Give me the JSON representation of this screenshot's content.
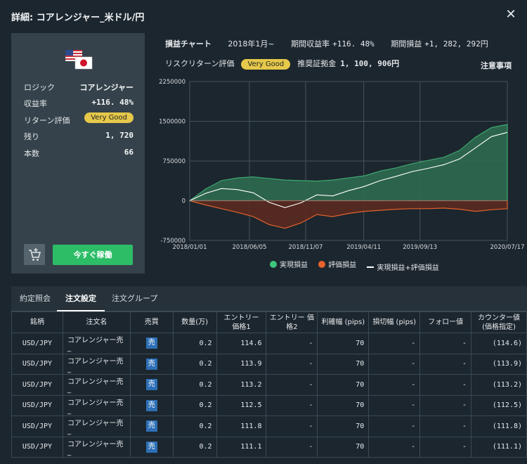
{
  "window": {
    "title": "詳細: コアレンジャー_米ドル/円"
  },
  "strategy": {
    "rows": [
      {
        "key": "ロジック",
        "value": "コアレンジャー"
      },
      {
        "key": "収益率",
        "value": "+116. 48%"
      },
      {
        "key": "リターン評価",
        "value": "Very Good"
      },
      {
        "key": "残り",
        "value": "1, 720"
      },
      {
        "key": "本数",
        "value": "66"
      }
    ],
    "trade_button": "今すぐ稼働"
  },
  "summary": {
    "chart_label": "損益チャート",
    "start": "2018年1月~",
    "return_label": "期間収益率",
    "return_value": "+116. 48%",
    "pl_label": "期間損益",
    "pl_value": "+1, 282, 292円",
    "risk_label": "リスクリターン評価",
    "risk_value": "Very Good",
    "margin_label": "推奨証拠金",
    "margin_value": "1, 100, 906円",
    "notice": "注意事項"
  },
  "chart_data": {
    "type": "area",
    "x_ticks": [
      "2018/01/01",
      "2018/06/05",
      "2018/11/07",
      "2019/04/11",
      "2019/09/13",
      "2020/07/17"
    ],
    "y_ticks": [
      "2250000",
      "1500000",
      "750000",
      "0",
      "-750000"
    ],
    "ylim": [
      -750000,
      2250000
    ],
    "series": [
      {
        "name": "実現損益",
        "color": "#3a9a6a",
        "values": [
          0,
          220000,
          380000,
          430000,
          450000,
          420000,
          390000,
          380000,
          370000,
          390000,
          430000,
          470000,
          560000,
          620000,
          700000,
          760000,
          820000,
          950000,
          1200000,
          1380000,
          1440000
        ]
      },
      {
        "name": "評価損益",
        "color": "#e2622d",
        "values": [
          0,
          -80000,
          -150000,
          -220000,
          -300000,
          -450000,
          -520000,
          -420000,
          -260000,
          -300000,
          -240000,
          -200000,
          -180000,
          -160000,
          -150000,
          -150000,
          -140000,
          -160000,
          -200000,
          -170000,
          -150000
        ]
      },
      {
        "name": "実現損益+評価損益",
        "color": "#ffffff",
        "values": [
          0,
          140000,
          230000,
          210000,
          150000,
          -30000,
          -130000,
          -40000,
          110000,
          90000,
          190000,
          270000,
          380000,
          460000,
          550000,
          610000,
          680000,
          790000,
          1000000,
          1210000,
          1290000
        ]
      }
    ]
  },
  "tabs": [
    "約定照会",
    "注文設定",
    "注文グループ"
  ],
  "table": {
    "headers": [
      "銘柄",
      "注文名",
      "売買",
      "数量(万)",
      "エントリー 価格1",
      "エントリー 価格2",
      "利確幅 (pips)",
      "損切幅 (pips)",
      "フォロー値",
      "カウンター値 (価格指定)"
    ],
    "rows": [
      [
        "USD/JPY",
        "コアレンジャー売_",
        "売",
        "0.2",
        "114.6",
        "-",
        "70",
        "-",
        "-",
        "(114.6)"
      ],
      [
        "USD/JPY",
        "コアレンジャー売_",
        "売",
        "0.2",
        "113.9",
        "-",
        "70",
        "-",
        "-",
        "(113.9)"
      ],
      [
        "USD/JPY",
        "コアレンジャー売_",
        "売",
        "0.2",
        "113.2",
        "-",
        "70",
        "-",
        "-",
        "(113.2)"
      ],
      [
        "USD/JPY",
        "コアレンジャー売_",
        "売",
        "0.2",
        "112.5",
        "-",
        "70",
        "-",
        "-",
        "(112.5)"
      ],
      [
        "USD/JPY",
        "コアレンジャー売_",
        "売",
        "0.2",
        "111.8",
        "-",
        "70",
        "-",
        "-",
        "(111.8)"
      ],
      [
        "USD/JPY",
        "コアレンジャー売_",
        "売",
        "0.2",
        "111.1",
        "-",
        "70",
        "-",
        "-",
        "(111.1)"
      ]
    ]
  }
}
